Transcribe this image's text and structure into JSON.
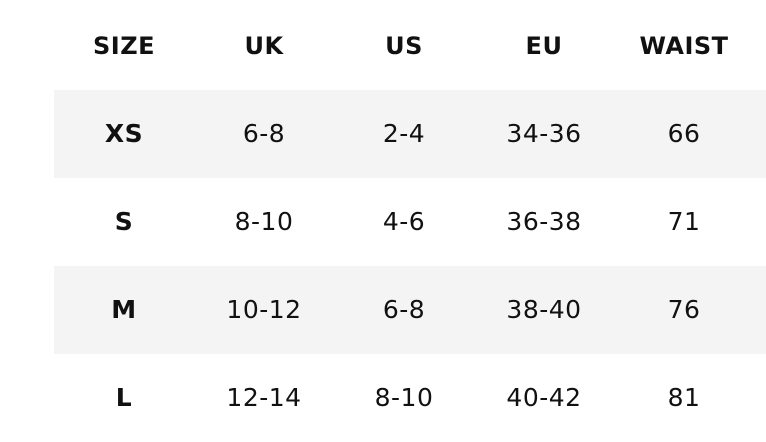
{
  "table": {
    "header": [
      "SIZE",
      "UK",
      "US",
      "EU",
      "WAIST"
    ],
    "rows": [
      [
        "XS",
        "6-8",
        "2-4",
        "34-36",
        66
      ],
      [
        "S",
        "8-10",
        "4-6",
        "36-38",
        71
      ],
      [
        "M",
        "10-12",
        "6-8",
        "38-40",
        76
      ],
      [
        "L",
        "12-14",
        "8-10",
        "40-42",
        81
      ]
    ]
  }
}
